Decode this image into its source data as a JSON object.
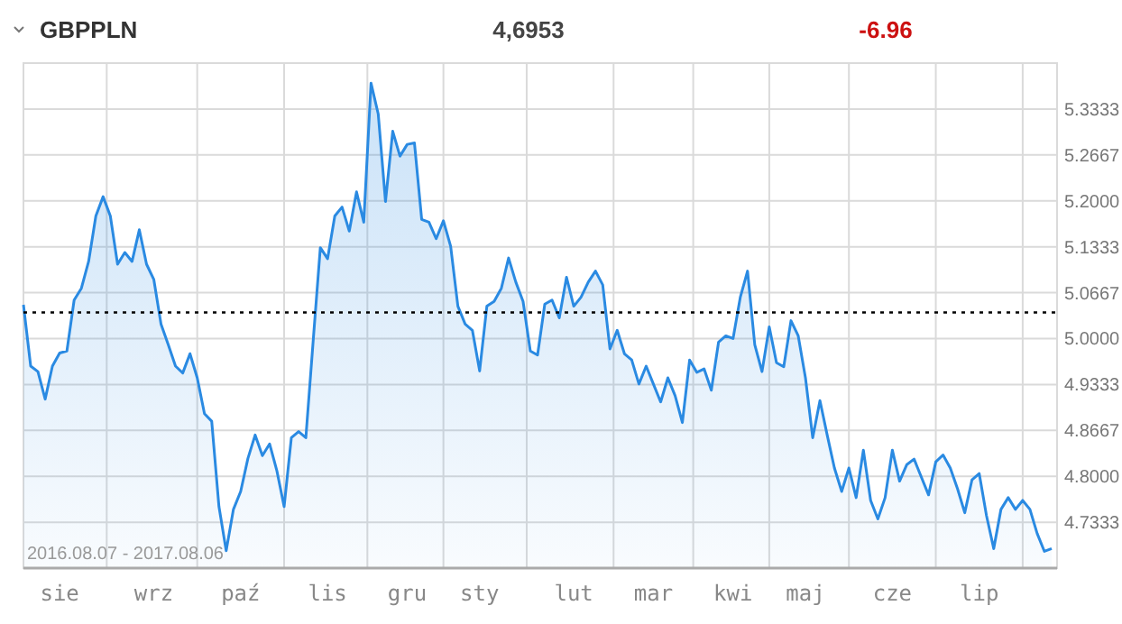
{
  "chart_data": {
    "type": "area",
    "title": "GBPPLN",
    "annotations": [
      "4,6953",
      "-6.96",
      "2016.08.07 - 2017.08.06"
    ],
    "categories": [
      null,
      null,
      null,
      null,
      null,
      "sie",
      null,
      null,
      null,
      null,
      null,
      null,
      null,
      null,
      null,
      null,
      null,
      null,
      "wrz",
      null,
      null,
      null,
      null,
      null,
      null,
      null,
      null,
      null,
      null,
      null,
      "paź",
      null,
      null,
      null,
      null,
      null,
      null,
      null,
      null,
      null,
      null,
      null,
      "lis",
      null,
      null,
      null,
      null,
      null,
      null,
      null,
      null,
      null,
      null,
      "gru",
      null,
      null,
      null,
      null,
      null,
      null,
      null,
      null,
      null,
      "sty",
      null,
      null,
      null,
      null,
      null,
      null,
      null,
      null,
      null,
      null,
      null,
      null,
      "lut",
      null,
      null,
      null,
      null,
      null,
      null,
      null,
      null,
      null,
      null,
      "mar",
      null,
      null,
      null,
      null,
      null,
      null,
      null,
      null,
      null,
      null,
      "kwi",
      null,
      null,
      null,
      null,
      null,
      null,
      null,
      null,
      null,
      "maj",
      null,
      null,
      null,
      null,
      null,
      null,
      null,
      null,
      null,
      null,
      null,
      "cze",
      null,
      null,
      null,
      null,
      null,
      null,
      null,
      null,
      null,
      null,
      null,
      "lip",
      null,
      null,
      null,
      null,
      null,
      null,
      null,
      null,
      null,
      null
    ],
    "series": [
      {
        "color": "#2a8ae2",
        "values": [
          5.049,
          4.96,
          4.952,
          4.912,
          4.96,
          4.979,
          4.982,
          5.056,
          5.073,
          5.112,
          5.178,
          5.206,
          5.178,
          5.108,
          5.125,
          5.112,
          5.158,
          5.108,
          5.086,
          5.021,
          4.991,
          4.96,
          4.95,
          4.978,
          4.943,
          4.891,
          4.88,
          4.756,
          4.692,
          4.752,
          4.778,
          4.826,
          4.86,
          4.83,
          4.847,
          4.808,
          4.756,
          4.856,
          4.865,
          4.856,
          4.995,
          5.132,
          5.116,
          5.178,
          5.191,
          5.156,
          5.213,
          5.169,
          5.371,
          5.326,
          5.199,
          5.301,
          5.265,
          5.282,
          5.284,
          5.173,
          5.169,
          5.145,
          5.171,
          5.134,
          5.047,
          5.021,
          5.012,
          4.953,
          5.047,
          5.054,
          5.073,
          5.117,
          5.082,
          5.054,
          4.982,
          4.976,
          5.05,
          5.056,
          5.03,
          5.089,
          5.047,
          5.06,
          5.082,
          5.098,
          5.078,
          4.985,
          5.012,
          4.978,
          4.969,
          4.934,
          4.96,
          4.934,
          4.908,
          4.943,
          4.917,
          4.878,
          4.969,
          4.951,
          4.956,
          4.925,
          4.995,
          5.004,
          5.0,
          5.06,
          5.098,
          4.991,
          4.952,
          5.017,
          4.965,
          4.959,
          5.026,
          5.004,
          4.943,
          4.856,
          4.91,
          4.86,
          4.812,
          4.778,
          4.812,
          4.769,
          4.838,
          4.765,
          4.738,
          4.769,
          4.838,
          4.793,
          4.817,
          4.825,
          4.799,
          4.773,
          4.821,
          4.831,
          4.812,
          4.782,
          4.747,
          4.795,
          4.804,
          4.743,
          4.695,
          4.752,
          4.769,
          4.752,
          4.765,
          4.752,
          4.717,
          4.691,
          4.695
        ]
      }
    ],
    "ylim": [
      4.6667,
      5.4
    ],
    "yticks": [
      4.7333,
      {
        "value": 4.8,
        "label": "4.8000"
      },
      4.8667,
      4.9333,
      {
        "value": 5.0,
        "label": "5.0000"
      },
      5.0667,
      5.1333,
      {
        "value": 5.2,
        "label": "5.2000"
      },
      5.2667,
      5.3333
    ],
    "ref_lines": [
      {
        "axis": "y",
        "value": 5.038,
        "line_style": "dotted",
        "color": "#000000"
      }
    ],
    "grid": true,
    "line_style": "solid"
  }
}
